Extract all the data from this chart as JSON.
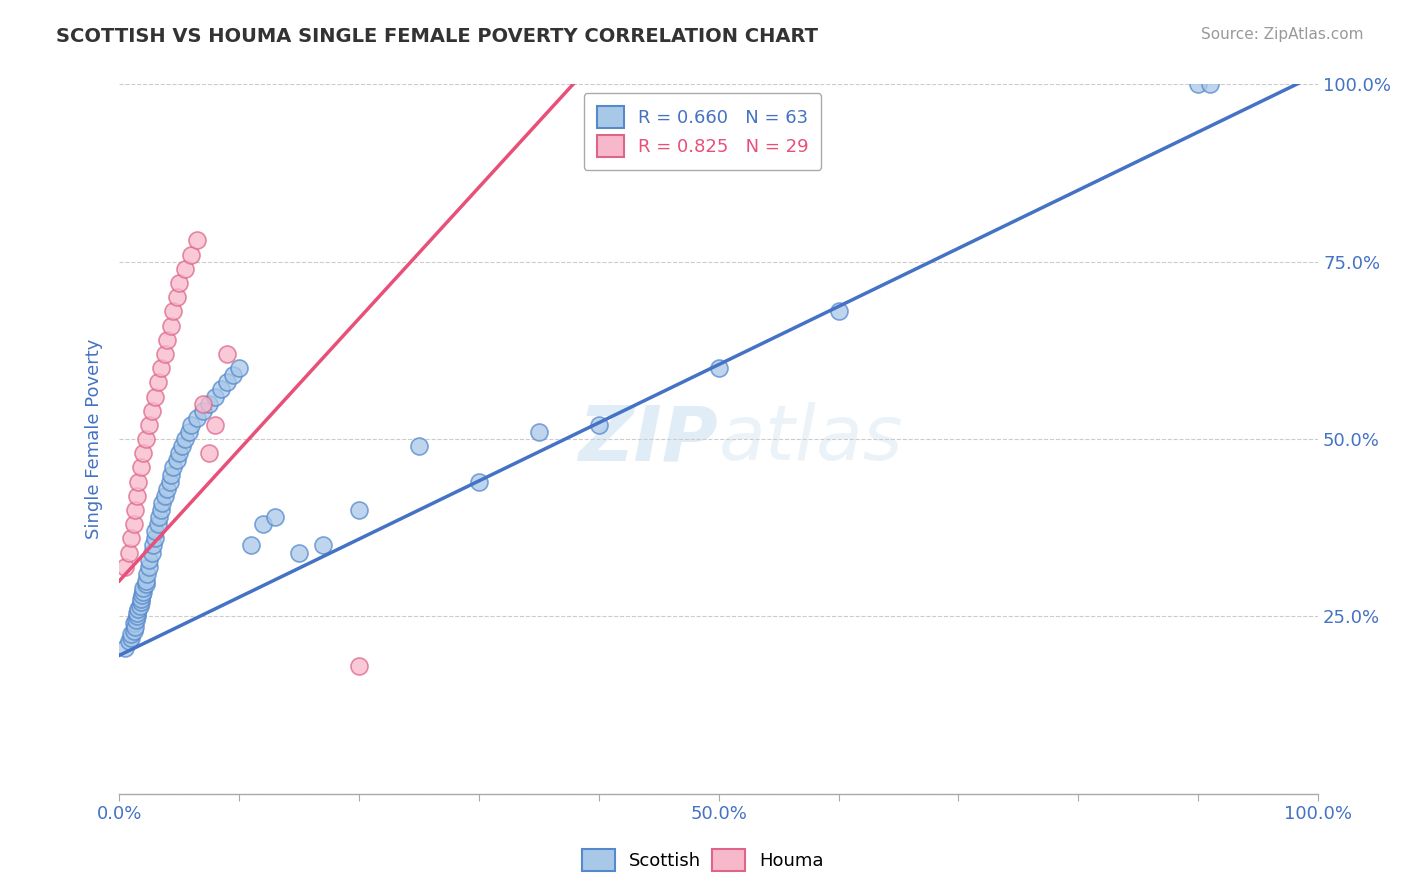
{
  "title": "SCOTTISH VS HOUMA SINGLE FEMALE POVERTY CORRELATION CHART",
  "source": "Source: ZipAtlas.com",
  "ylabel": "Single Female Poverty",
  "xlim": [
    0.0,
    1.0
  ],
  "ylim": [
    0.0,
    1.0
  ],
  "watermark_zip": "ZIP",
  "watermark_atlas": "atlas",
  "legend_R_scottish": "R = 0.660",
  "legend_N_scottish": "N = 63",
  "legend_R_houma": "R = 0.825",
  "legend_N_houma": "N = 29",
  "scottish_color": "#a8c8e8",
  "houma_color": "#f8b8cc",
  "scottish_edge_color": "#5588cc",
  "houma_edge_color": "#dd6688",
  "scottish_line_color": "#4472c4",
  "houma_line_color": "#e8507a",
  "scottish_line_slope": 0.82,
  "scottish_line_intercept": 0.195,
  "houma_line_slope": 1.85,
  "houma_line_intercept": 0.3,
  "scottish_x": [
    0.005,
    0.008,
    0.01,
    0.01,
    0.012,
    0.012,
    0.013,
    0.014,
    0.015,
    0.015,
    0.016,
    0.017,
    0.018,
    0.018,
    0.019,
    0.02,
    0.02,
    0.022,
    0.022,
    0.023,
    0.025,
    0.025,
    0.027,
    0.028,
    0.03,
    0.03,
    0.032,
    0.033,
    0.035,
    0.036,
    0.038,
    0.04,
    0.042,
    0.043,
    0.045,
    0.048,
    0.05,
    0.052,
    0.055,
    0.058,
    0.06,
    0.065,
    0.07,
    0.075,
    0.08,
    0.085,
    0.09,
    0.095,
    0.1,
    0.11,
    0.12,
    0.13,
    0.15,
    0.17,
    0.2,
    0.25,
    0.3,
    0.35,
    0.4,
    0.5,
    0.6,
    0.9,
    0.91
  ],
  "scottish_y": [
    0.205,
    0.215,
    0.22,
    0.225,
    0.23,
    0.24,
    0.235,
    0.245,
    0.25,
    0.255,
    0.26,
    0.265,
    0.27,
    0.275,
    0.28,
    0.285,
    0.29,
    0.295,
    0.3,
    0.31,
    0.32,
    0.33,
    0.34,
    0.35,
    0.36,
    0.37,
    0.38,
    0.39,
    0.4,
    0.41,
    0.42,
    0.43,
    0.44,
    0.45,
    0.46,
    0.47,
    0.48,
    0.49,
    0.5,
    0.51,
    0.52,
    0.53,
    0.54,
    0.55,
    0.56,
    0.57,
    0.58,
    0.59,
    0.6,
    0.35,
    0.38,
    0.39,
    0.34,
    0.35,
    0.4,
    0.49,
    0.44,
    0.51,
    0.52,
    0.6,
    0.68,
    1.0,
    1.0
  ],
  "houma_x": [
    0.005,
    0.008,
    0.01,
    0.012,
    0.013,
    0.015,
    0.016,
    0.018,
    0.02,
    0.022,
    0.025,
    0.027,
    0.03,
    0.032,
    0.035,
    0.038,
    0.04,
    0.043,
    0.045,
    0.048,
    0.05,
    0.055,
    0.06,
    0.065,
    0.07,
    0.075,
    0.08,
    0.09,
    0.2
  ],
  "houma_y": [
    0.32,
    0.34,
    0.36,
    0.38,
    0.4,
    0.42,
    0.44,
    0.46,
    0.48,
    0.5,
    0.52,
    0.54,
    0.56,
    0.58,
    0.6,
    0.62,
    0.64,
    0.66,
    0.68,
    0.7,
    0.72,
    0.74,
    0.76,
    0.78,
    0.55,
    0.48,
    0.52,
    0.62,
    0.18
  ],
  "background_color": "#ffffff",
  "grid_color": "#cccccc",
  "tick_label_color": "#4472c4"
}
